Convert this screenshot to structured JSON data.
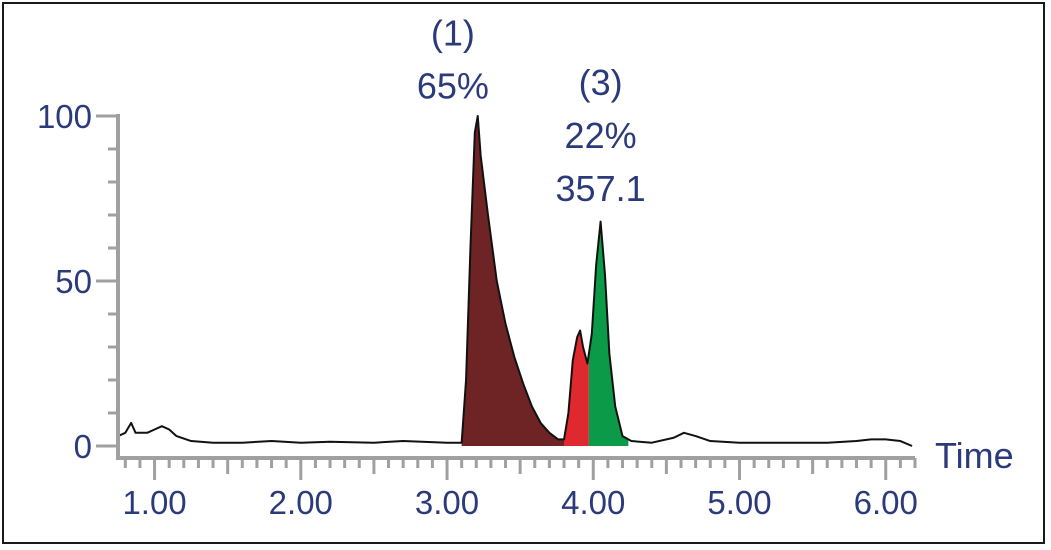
{
  "chart_data": {
    "type": "area",
    "title": "",
    "xlabel": "Time",
    "ylabel": "",
    "xlim": [
      0.75,
      6.2
    ],
    "ylim": [
      0,
      100
    ],
    "x_ticks": [
      "1.00",
      "2.00",
      "3.00",
      "4.00",
      "5.00",
      "6.00"
    ],
    "x_tick_values": [
      1,
      2,
      3,
      4,
      5,
      6
    ],
    "y_ticks": [
      "0",
      "50",
      "100"
    ],
    "y_tick_values": [
      0,
      50,
      100
    ],
    "grid": false,
    "colors": {
      "axis": "#a0a0a0",
      "label": "#2b3a7a",
      "trace": "#111111",
      "peak1": "#6e2424",
      "peak2": "#e0282f",
      "peak3": "#0a9a48"
    },
    "trace": [
      [
        0.75,
        3
      ],
      [
        0.8,
        4
      ],
      [
        0.84,
        7
      ],
      [
        0.87,
        4
      ],
      [
        0.95,
        4
      ],
      [
        1.0,
        5
      ],
      [
        1.05,
        6
      ],
      [
        1.1,
        5
      ],
      [
        1.15,
        3
      ],
      [
        1.25,
        1.5
      ],
      [
        1.4,
        1
      ],
      [
        1.6,
        1
      ],
      [
        1.8,
        1.5
      ],
      [
        2.0,
        1
      ],
      [
        2.2,
        1.3
      ],
      [
        2.5,
        1
      ],
      [
        2.7,
        1.5
      ],
      [
        3.0,
        1
      ],
      [
        3.1,
        1
      ],
      [
        3.13,
        20
      ],
      [
        3.16,
        60
      ],
      [
        3.19,
        95
      ],
      [
        3.21,
        100
      ],
      [
        3.23,
        88
      ],
      [
        3.28,
        70
      ],
      [
        3.34,
        50
      ],
      [
        3.4,
        37
      ],
      [
        3.46,
        27
      ],
      [
        3.52,
        19
      ],
      [
        3.58,
        12
      ],
      [
        3.64,
        7
      ],
      [
        3.7,
        4
      ],
      [
        3.76,
        2
      ],
      [
        3.8,
        2
      ],
      [
        3.83,
        10
      ],
      [
        3.86,
        26
      ],
      [
        3.89,
        33
      ],
      [
        3.91,
        35
      ],
      [
        3.93,
        30
      ],
      [
        3.96,
        25
      ],
      [
        3.99,
        34
      ],
      [
        4.02,
        55
      ],
      [
        4.05,
        68
      ],
      [
        4.08,
        52
      ],
      [
        4.11,
        28
      ],
      [
        4.15,
        12
      ],
      [
        4.2,
        3
      ],
      [
        4.26,
        1.5
      ],
      [
        4.4,
        1
      ],
      [
        4.55,
        2.5
      ],
      [
        4.62,
        4
      ],
      [
        4.7,
        3
      ],
      [
        4.8,
        1.5
      ],
      [
        5.0,
        1
      ],
      [
        5.3,
        1
      ],
      [
        5.6,
        1
      ],
      [
        5.8,
        1.5
      ],
      [
        5.9,
        2
      ],
      [
        6.0,
        2
      ],
      [
        6.1,
        1.5
      ],
      [
        6.18,
        0
      ]
    ],
    "peaks": [
      {
        "id": "peak-1",
        "start": 3.1,
        "end": 3.8,
        "color_key": "peak1",
        "labels": [
          "(1)",
          "65%"
        ],
        "label_x": 3.04,
        "label_y": 101
      },
      {
        "id": "peak-2",
        "start": 3.8,
        "end": 3.97,
        "color_key": "peak2",
        "labels": [],
        "label_x": 3.9,
        "label_y": 40
      },
      {
        "id": "peak-3",
        "start": 3.97,
        "end": 4.24,
        "color_key": "peak3",
        "labels": [
          "(3)",
          "22%",
          "357.1"
        ],
        "label_x": 4.05,
        "label_y": 70
      }
    ]
  }
}
